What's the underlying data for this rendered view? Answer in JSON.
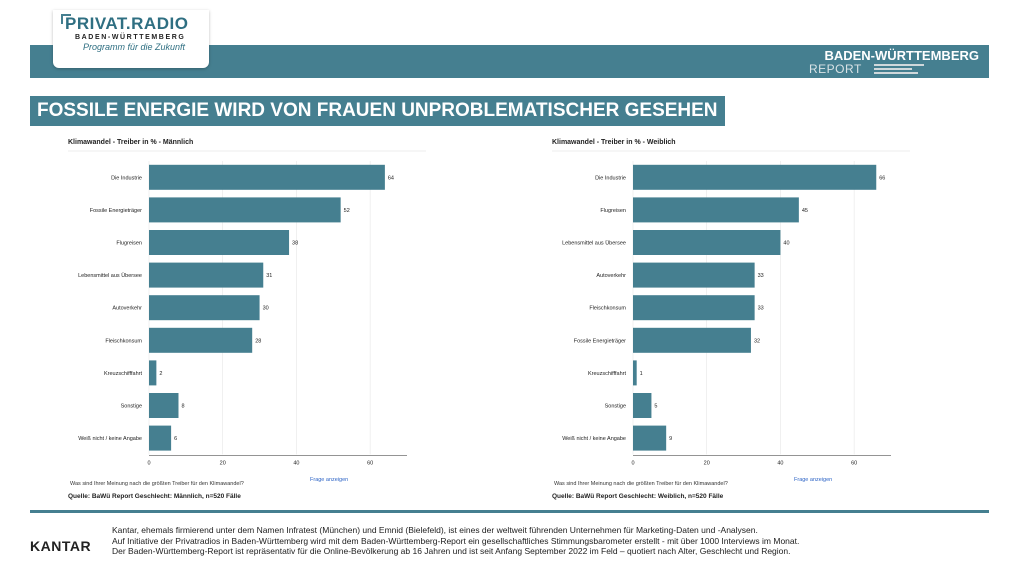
{
  "header": {
    "logo_title": "PRIVAT.RADIO",
    "logo_subtitle": "BADEN-WÜRTTEMBERG",
    "logo_tagline": "Programm für die Zukunft",
    "report_title": "BADEN-WÜRTTEMBERG",
    "report_subtitle": "REPORT"
  },
  "headline": "FOSSILE ENERGIE WIRD VON FRAUEN UNPROBLEMATISCHER GESEHEN",
  "chart_data": [
    {
      "type": "bar",
      "orientation": "horizontal",
      "title": "Klimawandel - Treiber in % - Männlich",
      "categories": [
        "Die Industrie",
        "Fossile Energieträger",
        "Flugreisen",
        "Lebensmittel aus Übersee",
        "Autoverkehr",
        "Fleischkonsum",
        "Kreuzschifffahrt",
        "Sonstige",
        "Weiß nicht / keine Angabe"
      ],
      "values": [
        64,
        52,
        38,
        31,
        30,
        28,
        2,
        8,
        6
      ],
      "xticks": [
        "0",
        "20",
        "40",
        "60"
      ],
      "xlim": [
        0,
        70
      ],
      "bar_color": "#457f90",
      "question": "Was sind Ihrer Meinung nach die größten Treiber für den Klimawandel?",
      "link": "Frage anzeigen",
      "source": "Quelle: BaWü Report Geschlecht: Männlich, n=520 Fälle"
    },
    {
      "type": "bar",
      "orientation": "horizontal",
      "title": "Klimawandel - Treiber in % - Weiblich",
      "categories": [
        "Die Industrie",
        "Flugreisen",
        "Lebensmittel aus Übersee",
        "Autoverkehr",
        "Fleischkonsum",
        "Fossile Energieträger",
        "Kreuzschifffahrt",
        "Sonstige",
        "Weiß nicht / keine Angabe"
      ],
      "values": [
        66,
        45,
        40,
        33,
        33,
        32,
        1,
        5,
        9
      ],
      "xticks": [
        "0",
        "20",
        "40",
        "60"
      ],
      "xlim": [
        0,
        70
      ],
      "bar_color": "#457f90",
      "question": "Was sind Ihrer Meinung nach die größten Treiber für den Klimawandel?",
      "link": "Frage anzeigen",
      "source": "Quelle: BaWü Report Geschlecht: Weiblich, n=520 Fälle"
    }
  ],
  "footer": {
    "brand": "KANTAR",
    "text_line1": "Kantar, ehemals firmierend unter dem Namen Infratest (München) und Emnid (Bielefeld), ist eines der weltweit führenden Unternehmen für Marketing-Daten und -Analysen.",
    "text_line2": "Auf Initiative der Privatradios in Baden-Württemberg wird mit dem Baden-Württemberg-Report ein gesellschaftliches Stimmungsbarometer erstellt - mit über 1000 Interviews im Monat.",
    "text_line3": "Der Baden-Württemberg-Report ist repräsentativ für die Online-Bevölkerung ab 16 Jahren und ist seit Anfang September 2022 im Feld – quotiert nach Alter, Geschlecht und Region."
  }
}
